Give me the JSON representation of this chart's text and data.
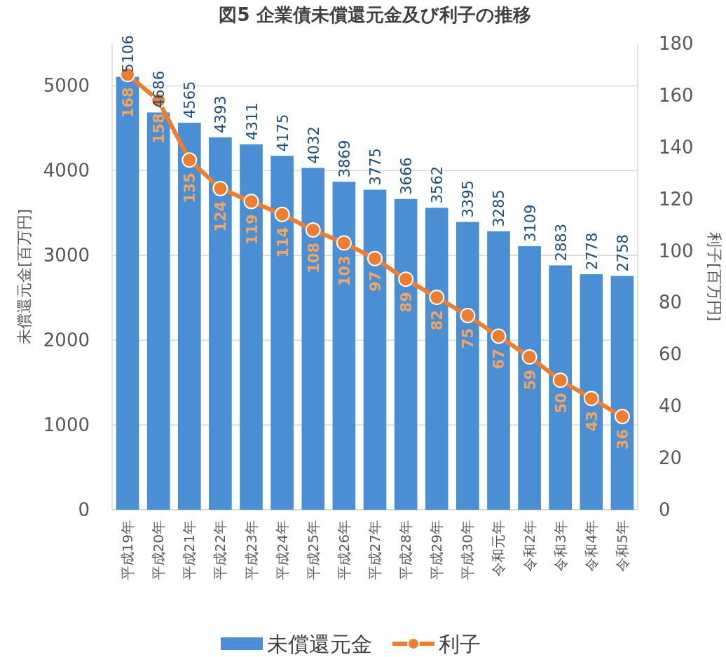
{
  "chart_data": {
    "type": "bar",
    "title": "図5 企業債未償還元金及び利子の推移",
    "categories": [
      "平成19年",
      "平成20年",
      "平成21年",
      "平成22年",
      "平成23年",
      "平成24年",
      "平成25年",
      "平成26年",
      "平成27年",
      "平成28年",
      "平成29年",
      "平成30年",
      "令和元年",
      "令和2年",
      "令和3年",
      "令和4年",
      "令和5年"
    ],
    "series": [
      {
        "name": "未償還元金",
        "color": "#4a8fd4",
        "values": [
          5106,
          4686,
          4565,
          4393,
          4311,
          4175,
          4032,
          3869,
          3775,
          3666,
          3562,
          3395,
          3285,
          3109,
          2883,
          2778,
          2758
        ]
      },
      {
        "name": "利子",
        "type": "line",
        "axis": "y2",
        "color": "#ed7d31",
        "values": [
          168,
          158,
          135,
          124,
          119,
          114,
          108,
          103,
          97,
          89,
          82,
          75,
          67,
          59,
          50,
          43,
          36
        ]
      }
    ],
    "ylabel": "未償還元金[百万円]",
    "y2label": "利子[百万円]",
    "ylim": [
      0,
      5500
    ],
    "yticks": [
      0,
      1000,
      2000,
      3000,
      4000,
      5000
    ],
    "y2lim": [
      0,
      180
    ],
    "y2ticks": [
      0,
      20,
      40,
      60,
      80,
      100,
      120,
      140,
      160,
      180
    ],
    "grid": "y",
    "legend": "bottom",
    "marker": "circle",
    "data_labels": true
  }
}
